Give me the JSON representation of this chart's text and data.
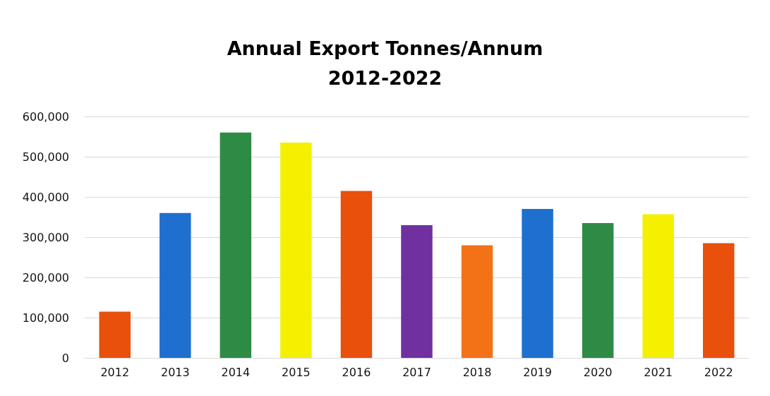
{
  "chart_data": {
    "type": "bar",
    "title": "Annual Export Tonnes/Annum\n2012-2022",
    "categories": [
      "2012",
      "2013",
      "2014",
      "2015",
      "2016",
      "2017",
      "2018",
      "2019",
      "2020",
      "2021",
      "2022"
    ],
    "values": [
      115000,
      360000,
      560000,
      535000,
      415000,
      330000,
      280000,
      370000,
      335000,
      357000,
      285000
    ],
    "colors": [
      "#e8500c",
      "#1f6fcf",
      "#2e8b45",
      "#f5f000",
      "#e8500c",
      "#7030a0",
      "#f47216",
      "#1f6fcf",
      "#2e8b45",
      "#f5f000",
      "#e8500c"
    ],
    "ylim": [
      0,
      600000
    ],
    "yticks": [
      {
        "value": 0,
        "label": "0"
      },
      {
        "value": 100000,
        "label": "100,000"
      },
      {
        "value": 200000,
        "label": "200,000"
      },
      {
        "value": 300000,
        "label": "300,000"
      },
      {
        "value": 400000,
        "label": "400,000"
      },
      {
        "value": 500000,
        "label": "500,000"
      },
      {
        "value": 600000,
        "label": "600,000"
      }
    ],
    "grid": "y"
  }
}
